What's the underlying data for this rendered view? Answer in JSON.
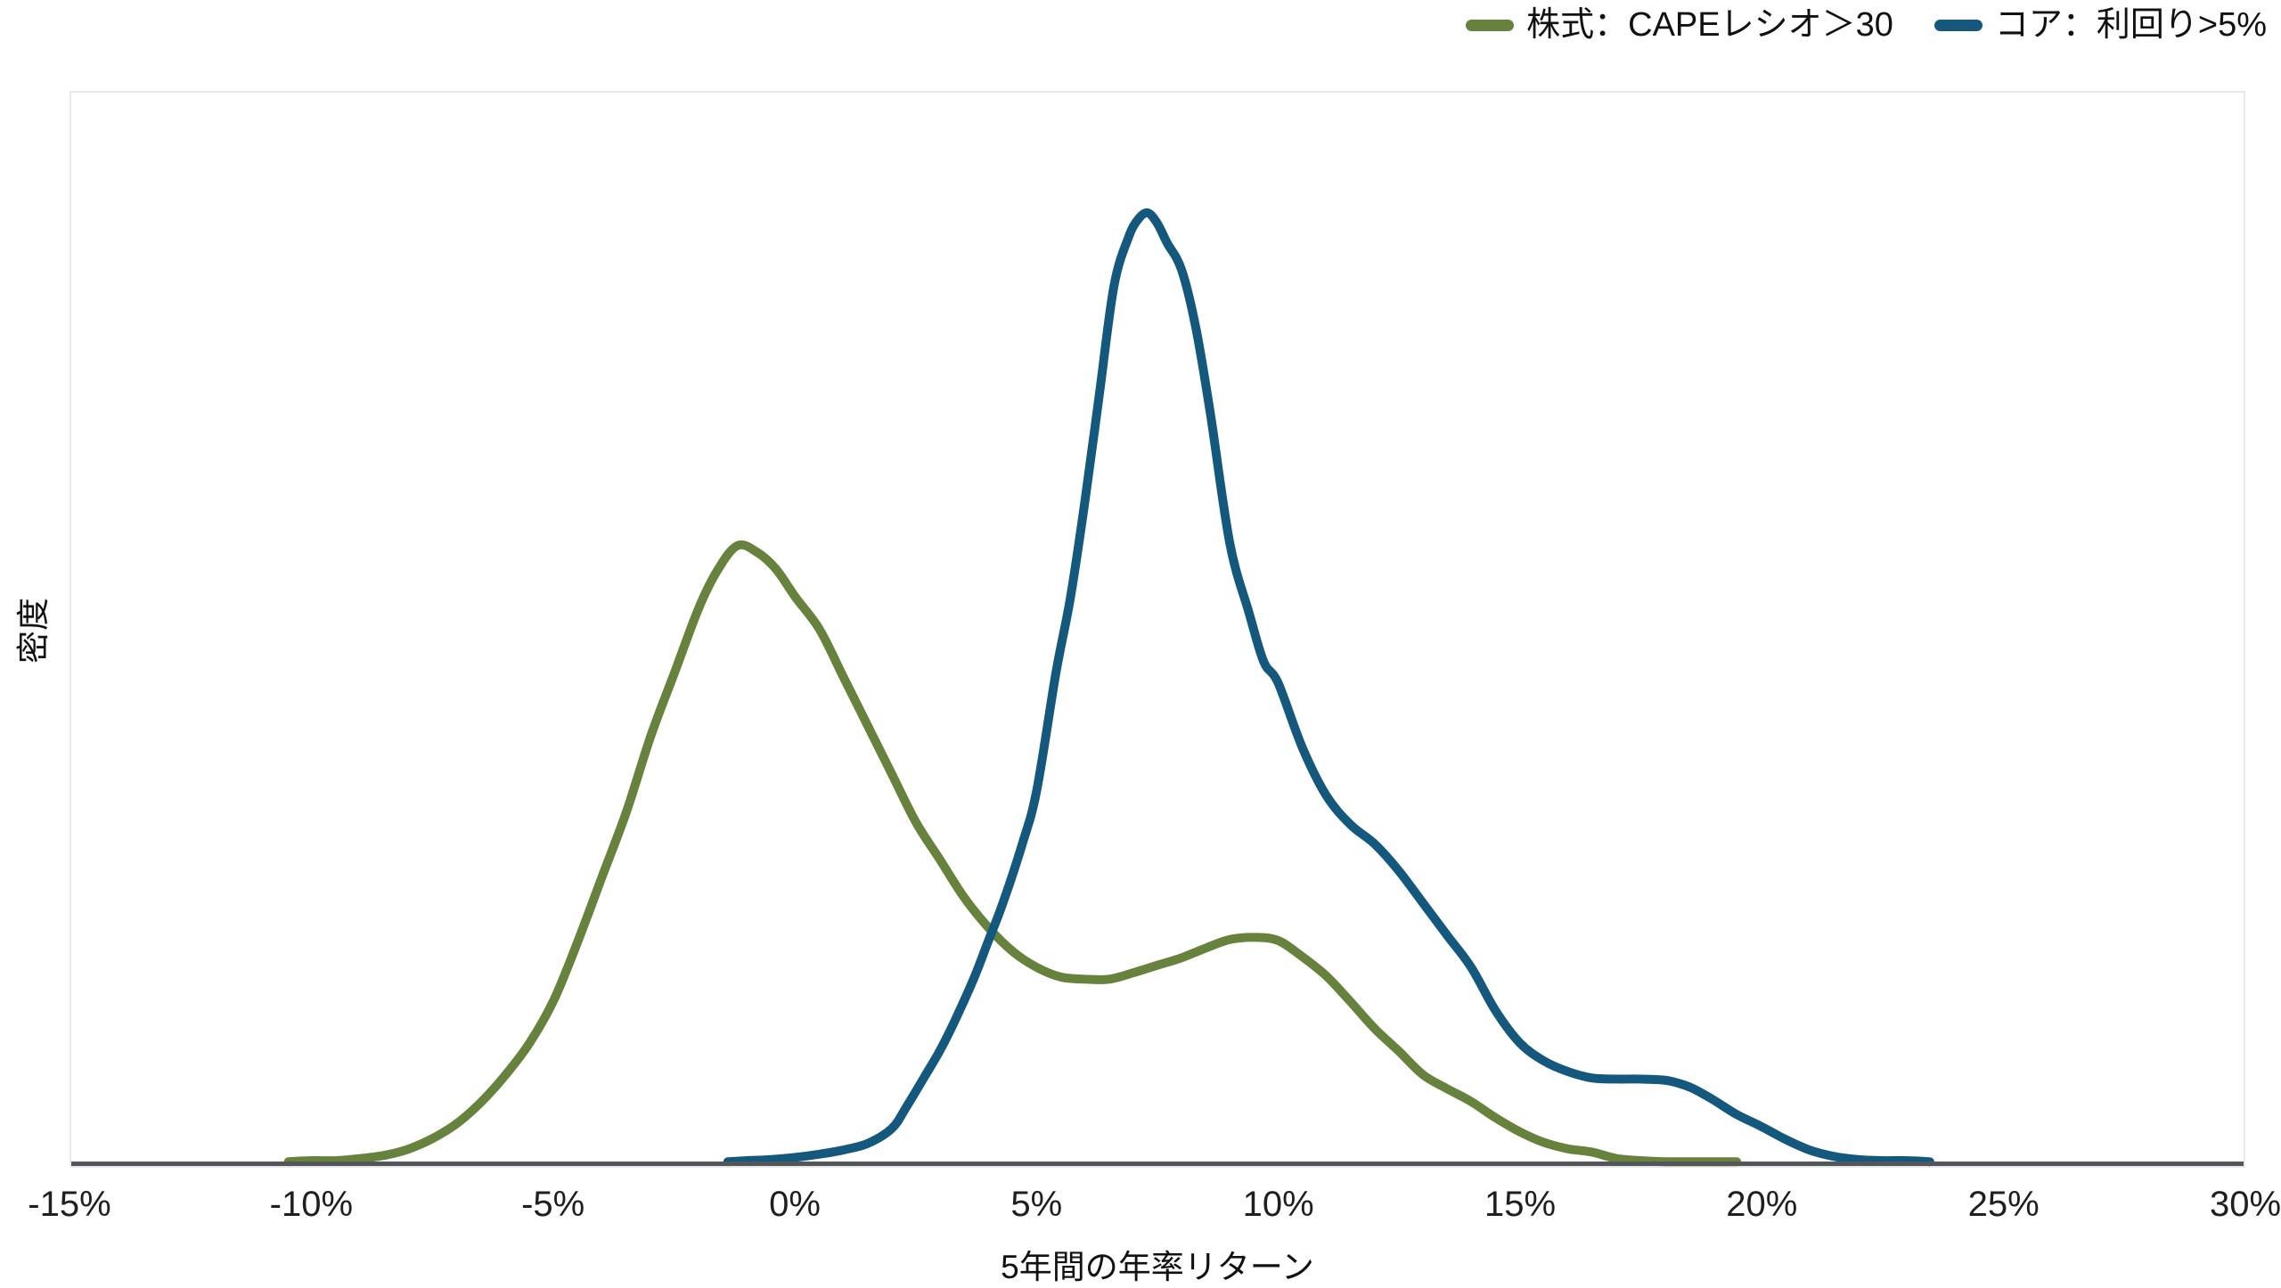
{
  "axes": {
    "x_title": "5年間の年率リターン",
    "y_title": "密度"
  },
  "colors": {
    "axis_line": "#53565a",
    "plot_border": "#e9e9e9",
    "green_series": "#66823d",
    "blue_series": "#14587d"
  },
  "chart_data": {
    "type": "line",
    "subtype": "kernel-density",
    "title": "",
    "xlabel": "5年間の年率リターン",
    "ylabel": "密度",
    "xlim": [
      -15,
      30
    ],
    "ylim": [
      0,
      1
    ],
    "y_unit": "relative density (y axis unlabeled)",
    "grid": false,
    "legend_position": "top-right",
    "x_ticks": [
      -15,
      -10,
      -5,
      0,
      5,
      10,
      15,
      20,
      25,
      30
    ],
    "x_tick_labels": [
      "-15%",
      "-10%",
      "-5%",
      "0%",
      "5%",
      "10%",
      "15%",
      "20%",
      "25%",
      "30%"
    ],
    "y_tick_labels": [],
    "series": [
      {
        "name": "株式：CAPEレシオ＞30",
        "color": "#66823d",
        "x": [
          -10.5,
          -10,
          -9.5,
          -9,
          -8.5,
          -8,
          -7.5,
          -7,
          -6.5,
          -6,
          -5.5,
          -5,
          -4.5,
          -4,
          -3.5,
          -3,
          -2.5,
          -2,
          -1.6,
          -1.2,
          -0.8,
          -0.4,
          0,
          0.5,
          1,
          1.5,
          2,
          2.5,
          3,
          3.5,
          4,
          4.5,
          5,
          5.5,
          6,
          6.5,
          7,
          7.5,
          8,
          8.5,
          9,
          9.5,
          10,
          10.5,
          11,
          11.5,
          12,
          12.5,
          13,
          13.5,
          14,
          14.5,
          15,
          15.5,
          16,
          16.5,
          17,
          17.5,
          18,
          18.5,
          19,
          19.5
        ],
        "y": [
          0.004,
          0.005,
          0.005,
          0.007,
          0.01,
          0.016,
          0.026,
          0.04,
          0.06,
          0.085,
          0.115,
          0.155,
          0.21,
          0.27,
          0.33,
          0.4,
          0.46,
          0.52,
          0.556,
          0.578,
          0.572,
          0.556,
          0.53,
          0.5,
          0.455,
          0.41,
          0.365,
          0.32,
          0.285,
          0.25,
          0.222,
          0.2,
          0.185,
          0.176,
          0.174,
          0.174,
          0.18,
          0.187,
          0.194,
          0.203,
          0.211,
          0.213,
          0.21,
          0.195,
          0.177,
          0.153,
          0.128,
          0.107,
          0.085,
          0.072,
          0.06,
          0.045,
          0.032,
          0.022,
          0.016,
          0.013,
          0.007,
          0.005,
          0.004,
          0.004,
          0.004,
          0.004
        ]
      },
      {
        "name": "コア：利回り>5%",
        "color": "#14587d",
        "x": [
          -1.4,
          -1,
          -0.5,
          0,
          0.5,
          1,
          1.5,
          2,
          2.3,
          2.7,
          3,
          3.3,
          3.7,
          4,
          4.3,
          4.7,
          5,
          5.4,
          5.7,
          6,
          6.3,
          6.6,
          6.9,
          7.1,
          7.3,
          7.5,
          7.7,
          8,
          8.3,
          8.6,
          9,
          9.4,
          9.7,
          10,
          10.5,
          11,
          11.5,
          12,
          12.5,
          13,
          13.5,
          14,
          14.5,
          15,
          15.5,
          16,
          16.5,
          17,
          17.5,
          18,
          18.3,
          18.6,
          19,
          19.5,
          20,
          20.5,
          21,
          21.5,
          22,
          22.5,
          23,
          23.5
        ],
        "y": [
          0.004,
          0.005,
          0.006,
          0.008,
          0.011,
          0.015,
          0.021,
          0.035,
          0.055,
          0.085,
          0.108,
          0.135,
          0.175,
          0.21,
          0.245,
          0.3,
          0.35,
          0.46,
          0.53,
          0.62,
          0.72,
          0.82,
          0.865,
          0.882,
          0.888,
          0.878,
          0.86,
          0.835,
          0.78,
          0.7,
          0.58,
          0.515,
          0.47,
          0.45,
          0.39,
          0.345,
          0.318,
          0.3,
          0.275,
          0.245,
          0.215,
          0.185,
          0.145,
          0.115,
          0.098,
          0.088,
          0.082,
          0.081,
          0.081,
          0.08,
          0.077,
          0.072,
          0.062,
          0.048,
          0.037,
          0.025,
          0.015,
          0.009,
          0.006,
          0.005,
          0.005,
          0.004
        ]
      }
    ]
  }
}
